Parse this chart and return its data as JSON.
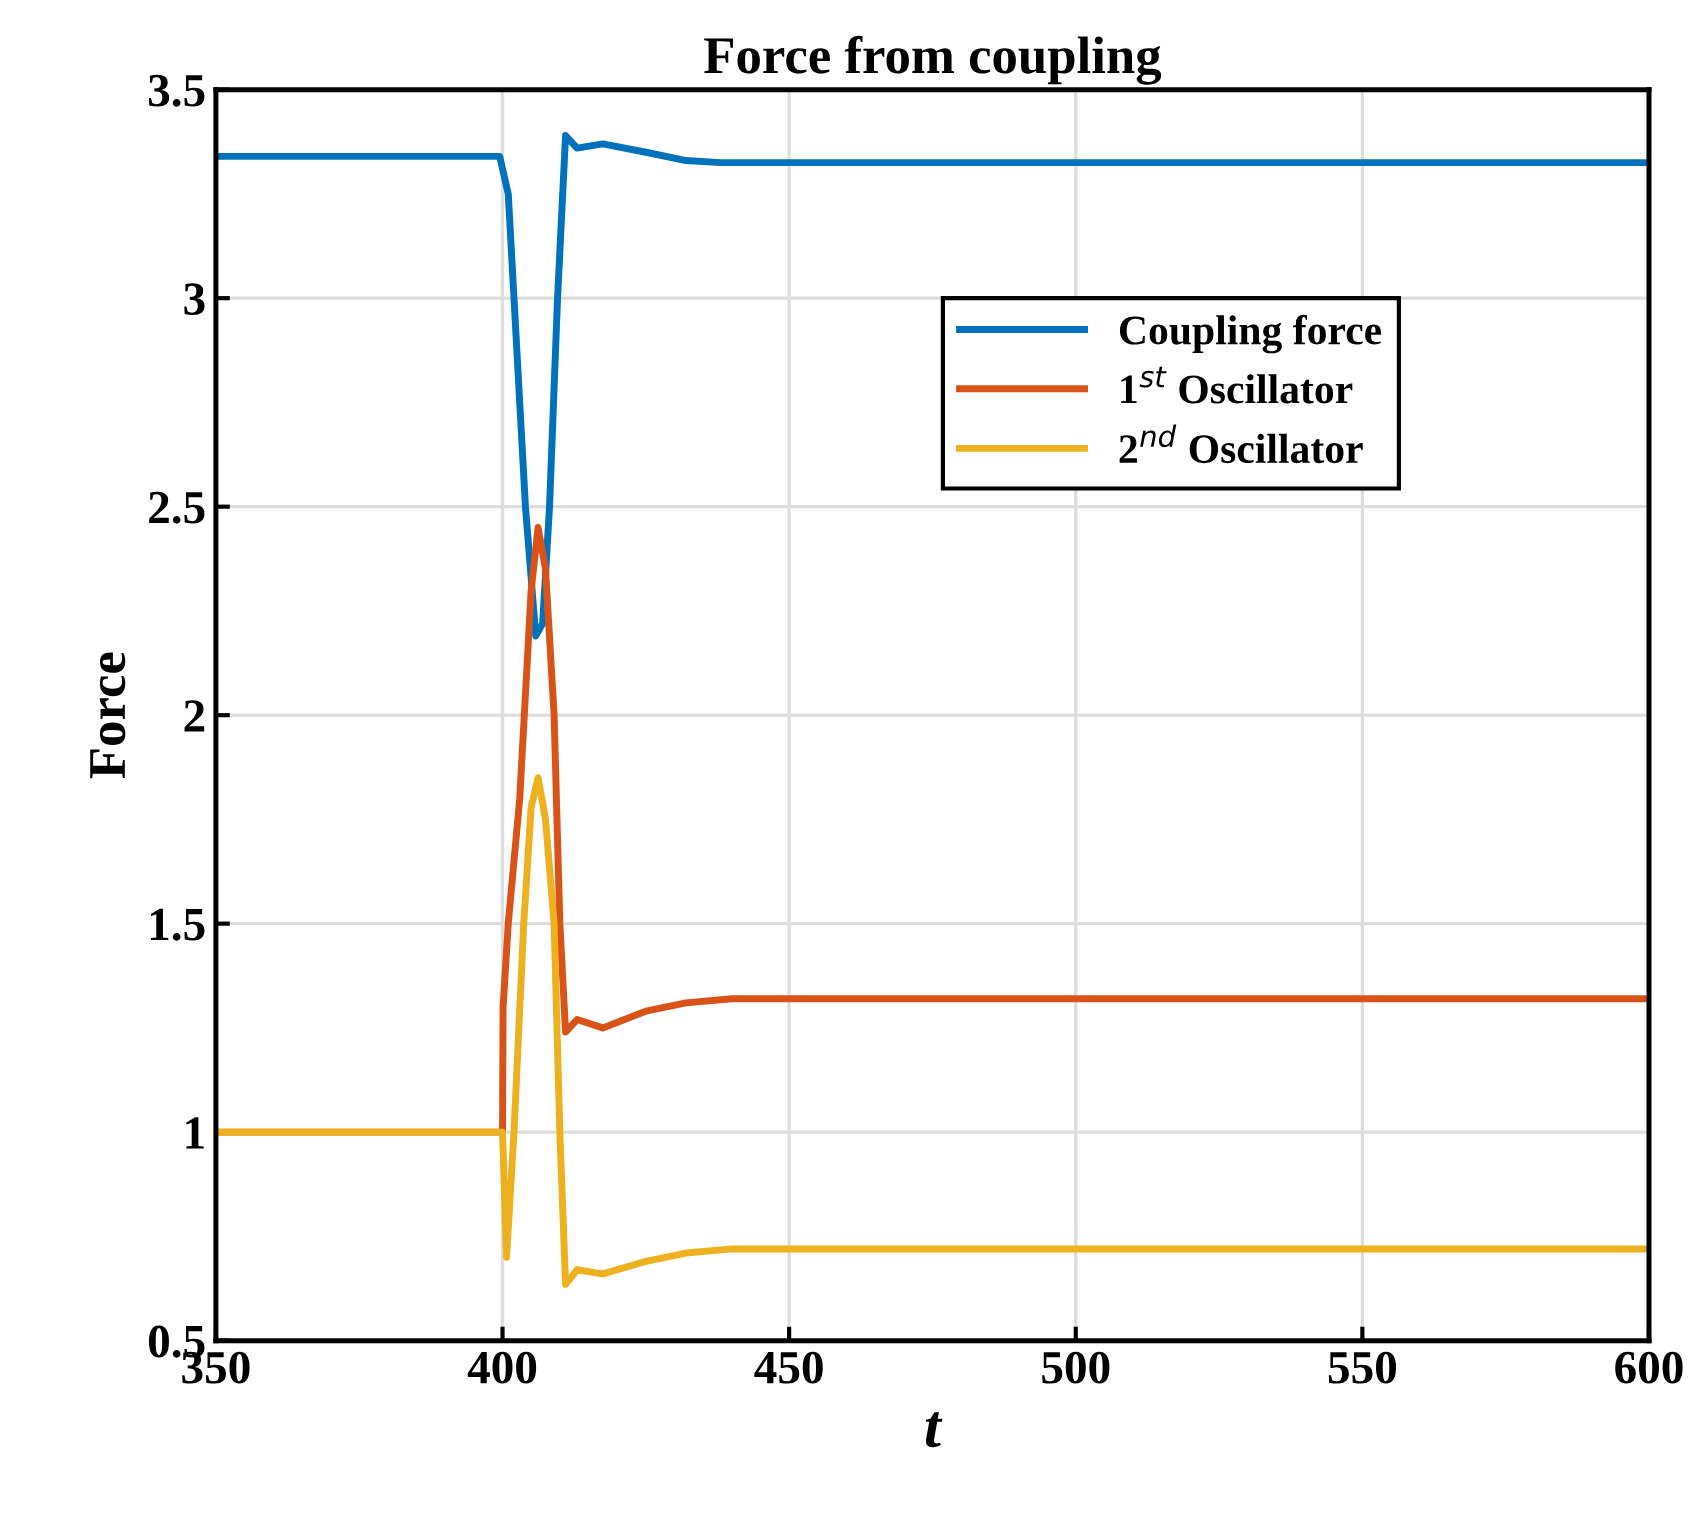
{
  "chart_data": {
    "type": "line",
    "title": "Force from coupling",
    "xlabel": "t",
    "ylabel": "Force",
    "series": [
      {
        "name": "Coupling force",
        "color": "#0072bd",
        "x": [
          350,
          399.5,
          401,
          402,
          404,
          405.8,
          407,
          408.2,
          409.6,
          411,
          413,
          417.5,
          425,
          432,
          438,
          450,
          600
        ],
        "values": [
          3.34,
          3.34,
          3.25,
          3.0,
          2.5,
          2.19,
          2.22,
          2.5,
          3.0,
          3.39,
          3.36,
          3.37,
          3.35,
          3.33,
          3.325,
          3.325,
          3.325
        ]
      },
      {
        "name": "1$^{st}$ Oscillator",
        "color": "#d95319",
        "x": [
          350,
          400,
          400.1,
          401,
          403,
          405,
          406.2,
          407.5,
          409,
          410,
          411,
          413,
          417.5,
          425,
          432,
          440,
          600
        ],
        "values": [
          1.0,
          1.0,
          1.3,
          1.5,
          1.8,
          2.3,
          2.45,
          2.35,
          2.0,
          1.5,
          1.24,
          1.27,
          1.25,
          1.29,
          1.31,
          1.32,
          1.32
        ]
      },
      {
        "name": "2$^{nd}$ Oscillator",
        "color": "#edb120",
        "x": [
          350,
          400,
          400.7,
          402,
          403.7,
          405,
          406.2,
          407.5,
          409,
          410,
          411,
          413,
          417.5,
          425,
          432,
          440,
          600
        ],
        "values": [
          1.0,
          1.0,
          0.7,
          1.0,
          1.5,
          1.78,
          1.85,
          1.75,
          1.5,
          1.0,
          0.635,
          0.67,
          0.66,
          0.69,
          0.71,
          0.72,
          0.72
        ]
      }
    ],
    "xlim": [
      350,
      600
    ],
    "xticks": [
      350,
      400,
      450,
      500,
      550,
      600
    ],
    "ylim": [
      0.5,
      3.5
    ],
    "yticks": [
      0.5,
      1,
      1.5,
      2,
      2.5,
      3,
      3.5
    ],
    "grid": true,
    "legend": "top right",
    "marker": "none",
    "line_style": "solid"
  }
}
